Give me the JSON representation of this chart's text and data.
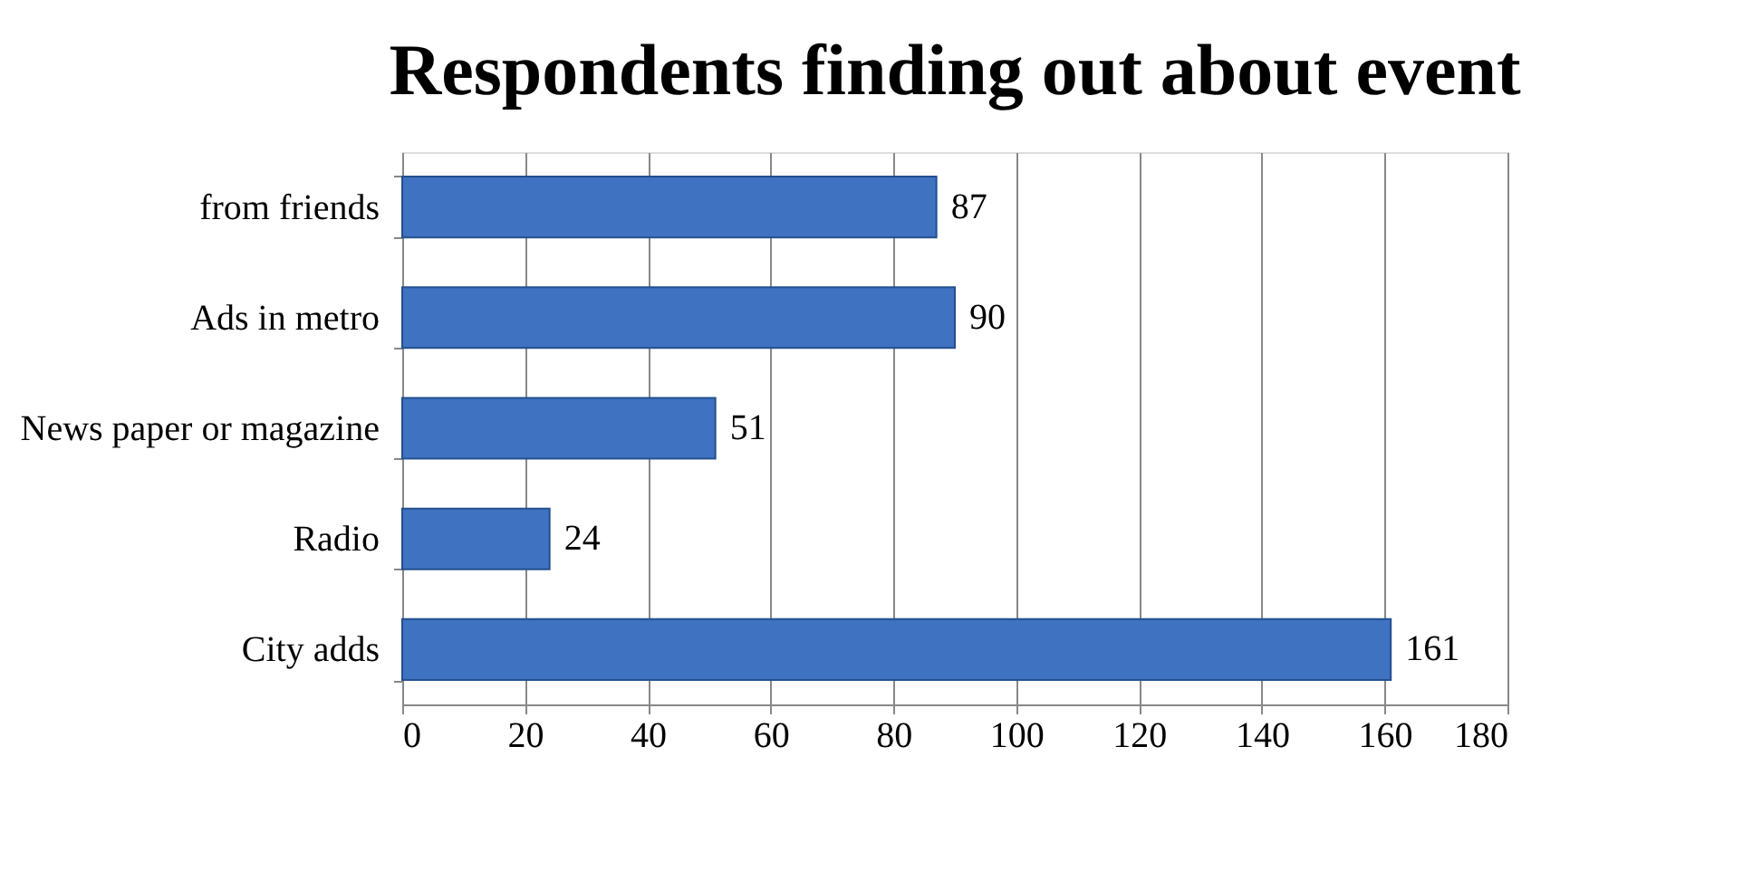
{
  "chart_data": {
    "type": "bar",
    "orientation": "horizontal",
    "title": "Respondents finding out about event",
    "categories": [
      "from friends",
      "Ads in metro",
      "News paper or magazine",
      "Radio",
      "City adds"
    ],
    "values": [
      87,
      90,
      51,
      24,
      161
    ],
    "color": "#3f72c0",
    "xlim": [
      0,
      180
    ],
    "xticks": [
      0,
      20,
      40,
      60,
      80,
      100,
      120,
      140,
      160,
      180
    ],
    "grid": "x",
    "data_labels": true
  }
}
